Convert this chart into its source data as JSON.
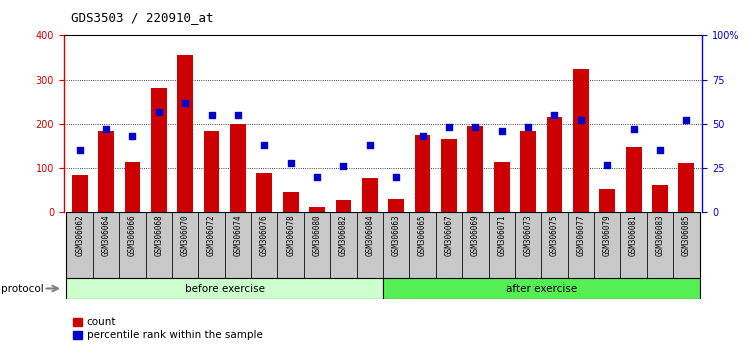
{
  "title": "GDS3503 / 220910_at",
  "samples": [
    "GSM306062",
    "GSM306064",
    "GSM306066",
    "GSM306068",
    "GSM306070",
    "GSM306072",
    "GSM306074",
    "GSM306076",
    "GSM306078",
    "GSM306080",
    "GSM306082",
    "GSM306084",
    "GSM306063",
    "GSM306065",
    "GSM306067",
    "GSM306069",
    "GSM306071",
    "GSM306073",
    "GSM306075",
    "GSM306077",
    "GSM306079",
    "GSM306081",
    "GSM306083",
    "GSM306085"
  ],
  "count": [
    85,
    185,
    115,
    280,
    355,
    185,
    200,
    90,
    45,
    12,
    28,
    78,
    30,
    175,
    165,
    195,
    115,
    185,
    215,
    325,
    52,
    148,
    62,
    112
  ],
  "percentile": [
    35,
    47,
    43,
    57,
    62,
    55,
    55,
    38,
    28,
    20,
    26,
    38,
    20,
    43,
    48,
    48,
    46,
    48,
    55,
    52,
    27,
    47,
    35,
    52
  ],
  "before_count": 12,
  "after_count": 12,
  "protocol_label": "protocol",
  "before_label": "before exercise",
  "after_label": "after exercise",
  "legend_count": "count",
  "legend_percentile": "percentile rank within the sample",
  "bar_color": "#cc0000",
  "dot_color": "#0000cc",
  "before_color": "#ccffcc",
  "after_color": "#55ee55",
  "ylim_left": [
    0,
    400
  ],
  "ylim_right": [
    0,
    100
  ],
  "yticks_left": [
    0,
    100,
    200,
    300,
    400
  ],
  "yticks_right": [
    0,
    25,
    50,
    75,
    100
  ],
  "ytick_labels_right": [
    "0",
    "25",
    "50",
    "75",
    "100%"
  ],
  "title_fontsize": 9,
  "tick_label_fontsize": 7,
  "sample_label_fontsize": 5.5
}
